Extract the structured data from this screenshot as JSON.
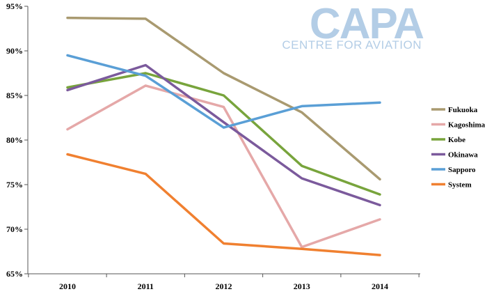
{
  "logo": {
    "main": "CAPA",
    "sub": "CENTRE FOR AVIATION",
    "color": "#b3cde6"
  },
  "chart_data": {
    "type": "line",
    "title": "",
    "xlabel": "",
    "ylabel": "",
    "categories": [
      "2010",
      "2011",
      "2012",
      "2013",
      "2014"
    ],
    "ylim": [
      65,
      95
    ],
    "yticks": [
      65,
      70,
      75,
      80,
      85,
      90,
      95
    ],
    "ytick_labels": [
      "65%",
      "70%",
      "75%",
      "80%",
      "85%",
      "90%",
      "95%"
    ],
    "grid": false,
    "legend_position": "right",
    "series": [
      {
        "name": "Fukuoka",
        "color": "#a99a70",
        "values": [
          93.7,
          93.6,
          87.5,
          83.1,
          75.6
        ]
      },
      {
        "name": "Kagoshima",
        "color": "#e5a8a8",
        "values": [
          81.2,
          86.1,
          83.7,
          68.0,
          71.1
        ]
      },
      {
        "name": "Kobe",
        "color": "#78a43c",
        "values": [
          85.9,
          87.5,
          85.0,
          77.1,
          73.9
        ]
      },
      {
        "name": "Okinawa",
        "color": "#7b5a9c",
        "values": [
          85.6,
          88.4,
          82.0,
          75.7,
          72.7
        ]
      },
      {
        "name": "Sapporo",
        "color": "#5a9fd6",
        "values": [
          89.5,
          87.2,
          81.4,
          83.8,
          84.2
        ]
      },
      {
        "name": "System",
        "color": "#f08030",
        "values": [
          78.4,
          76.2,
          68.4,
          67.8,
          67.1
        ]
      }
    ]
  }
}
